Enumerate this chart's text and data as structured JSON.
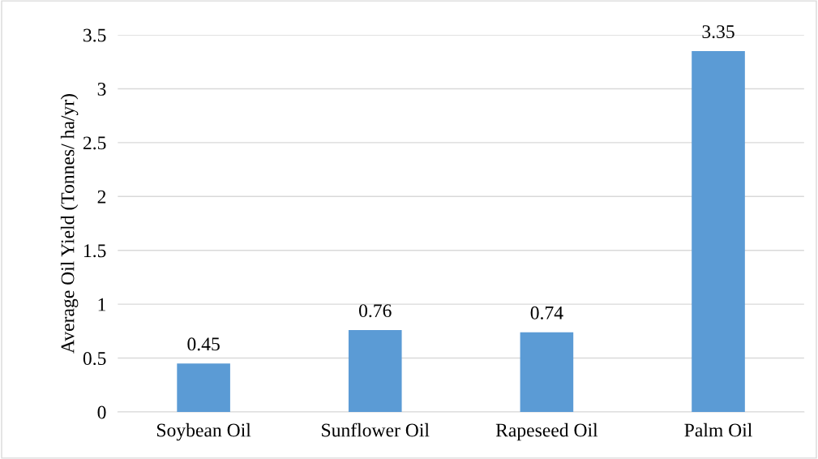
{
  "chart_data": {
    "type": "bar",
    "ylabel": "Average Oil Yield (Tonnes/ ha/yr)",
    "categories": [
      "Soybean Oil",
      "Sunflower Oil",
      "Rapeseed Oil",
      "Palm Oil"
    ],
    "values": [
      0.45,
      0.76,
      0.74,
      3.35
    ],
    "color": "#5b9bd5",
    "ylim": [
      0,
      3.5
    ],
    "yticks": [
      0,
      0.5,
      1,
      1.5,
      2,
      2.5,
      3,
      3.5
    ],
    "grid": "y",
    "data_labels": true
  }
}
